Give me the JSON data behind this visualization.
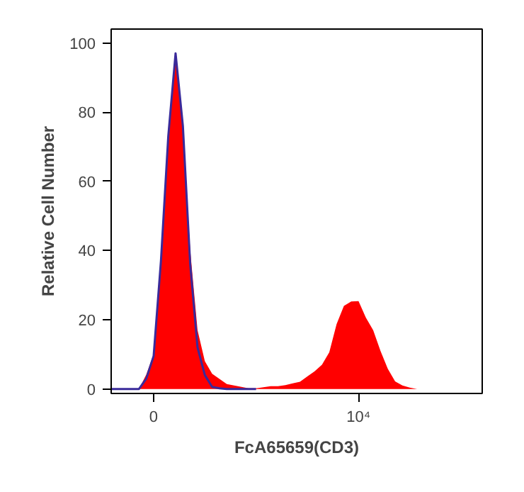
{
  "chart_data": {
    "type": "area",
    "xlabel": "FcA65659(CD3)",
    "ylabel": "Relative Cell Number",
    "categories": [
      null,
      null,
      null,
      null,
      null,
      null,
      "0",
      null,
      null,
      null,
      null,
      null,
      null,
      null,
      null,
      null,
      null,
      null,
      null,
      null,
      null,
      null,
      null,
      null,
      null,
      null,
      null,
      null,
      null,
      null,
      null,
      null,
      null,
      null,
      "10⁴",
      null,
      null,
      null,
      null,
      null,
      null,
      null,
      null,
      null,
      null,
      null,
      null,
      null,
      null,
      null,
      null,
      null
    ],
    "ylim": [
      -1.3,
      104
    ],
    "yticks": [
      0,
      20,
      40,
      60,
      80,
      100
    ],
    "grid": false,
    "series": [
      {
        "color": "#ff0000",
        "values": [
          0,
          0,
          0,
          0,
          0,
          4.2,
          10,
          36,
          71,
          97,
          75,
          40,
          17,
          8,
          4.4,
          2.9,
          1.4,
          1.0,
          0.6,
          0.2,
          0.2,
          0.5,
          0.8,
          0.8,
          1.1,
          1.6,
          2.1,
          3.6,
          5.1,
          7,
          10.6,
          18.7,
          24,
          25.3,
          25.4,
          20.6,
          17,
          11,
          5.8,
          2.2,
          1.0,
          0.4,
          0,
          0,
          0,
          0,
          0,
          0,
          0,
          0,
          0,
          0
        ]
      },
      {
        "type": "line",
        "color": "#3a2a9a",
        "values": [
          0,
          0,
          0,
          0,
          0,
          3,
          9.5,
          37,
          73,
          97,
          76,
          36,
          12,
          4,
          0.6,
          0.2,
          0,
          0,
          0,
          0,
          0,
          null,
          null,
          null,
          null,
          null,
          null,
          null,
          null,
          null,
          null,
          null,
          null,
          null,
          null,
          null,
          null,
          null,
          null,
          null,
          null,
          null,
          null,
          null,
          null,
          null,
          null,
          null,
          null,
          null,
          null,
          null
        ]
      }
    ]
  }
}
